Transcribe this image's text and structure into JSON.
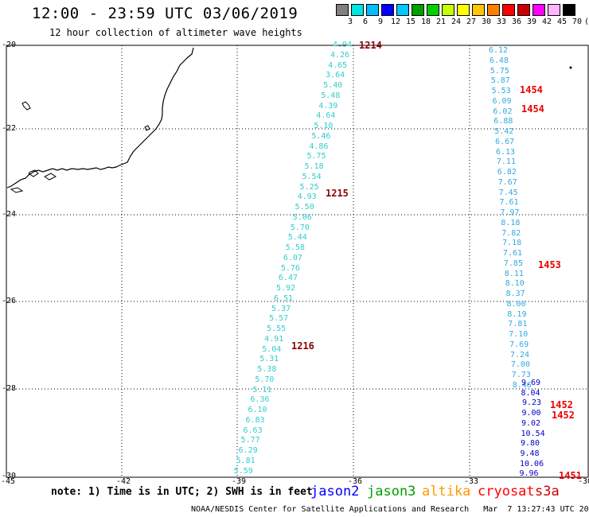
{
  "header": {
    "title": "12:00 - 23:59 UTC 03/06/2019",
    "subtitle": "12 hour collection of altimeter wave heights"
  },
  "color_scale": {
    "labels": [
      "3",
      "6",
      "9",
      "12",
      "15",
      "18",
      "21",
      "24",
      "27",
      "30",
      "33",
      "36",
      "39",
      "42",
      "45",
      "70"
    ],
    "unit": "(ft)",
    "colors": [
      "#808080",
      "#00e5e5",
      "#00bfff",
      "#0000ff",
      "#00c8ff",
      "#00a000",
      "#00d000",
      "#c8ff00",
      "#ffff00",
      "#ffc800",
      "#ff8000",
      "#ff0000",
      "#c80000",
      "#ff00ff",
      "#ffb4ff",
      "#000000"
    ]
  },
  "axes": {
    "lat_labels": [
      "-20",
      "-22",
      "-24",
      "-26",
      "-28",
      "-30"
    ],
    "lon_labels": [
      "-45",
      "-42",
      "-39",
      "-36",
      "-33",
      "-30"
    ]
  },
  "tracks": [
    {
      "color": "#33cccc",
      "values": [
        "4.94",
        "4.26",
        "4.65",
        "3.64",
        "5.40",
        "5.48",
        "4.39",
        "4.64",
        "5.10",
        "5.46",
        "4.86",
        "5.75",
        "5.18",
        "5.54",
        "5.25",
        "4.93",
        "5.50",
        "5.06",
        "5.70",
        "5.44",
        "5.58",
        "6.07",
        "5.76",
        "6.47",
        "5.92",
        "6.51",
        "5.37",
        "5.57",
        "5.55",
        "4.91",
        "5.04",
        "5.31",
        "5.38",
        "5.70",
        "5.11",
        "6.36",
        "6.10",
        "6.83",
        "6.63",
        "5.77",
        "6.29",
        "5.81",
        "5.59"
      ]
    },
    {
      "color": "#33aadd",
      "values": [
        "6.12",
        "6.48",
        "5.75",
        "5.87",
        "5.53",
        "6.09",
        "6.02",
        "6.88",
        "5.42",
        "6.67",
        "6.13",
        "7.11",
        "6.82",
        "7.67",
        "7.45",
        "7.61",
        "7.97",
        "8.18",
        "7.82",
        "7.18",
        "7.61",
        "7.85",
        "8.11",
        "8.10",
        "8.37",
        "8.00",
        "8.19",
        "7.81",
        "7.10",
        "7.69",
        "7.24",
        "7.00",
        "7.73",
        "8.46"
      ]
    },
    {
      "color": "#0000cc",
      "values": [
        "9.69",
        "8.04",
        "9.23",
        "9.00",
        "9.02",
        "10.54",
        "9.80",
        "9.48",
        "10.06",
        "9.96"
      ]
    }
  ],
  "time_labels": [
    {
      "text": "1214",
      "color": "#8b0000"
    },
    {
      "text": "1215",
      "color": "#8b0000"
    },
    {
      "text": "1216",
      "color": "#8b0000"
    },
    {
      "text": "1454",
      "color": "#ee0000"
    },
    {
      "text": "1454",
      "color": "#ee0000"
    },
    {
      "text": "1453",
      "color": "#ee0000"
    },
    {
      "text": "1452",
      "color": "#ee0000"
    },
    {
      "text": "1452",
      "color": "#ee0000"
    },
    {
      "text": "1451",
      "color": "#ee0000"
    }
  ],
  "legend": {
    "note": "note: 1) Time is in UTC; 2) SWH is in feet",
    "satellites": [
      {
        "name": "jason2",
        "color": "#0000ff"
      },
      {
        "name": "jason3",
        "color": "#00a000"
      },
      {
        "name": "altika",
        "color": "#ff9900"
      },
      {
        "name": "cryosat",
        "color": "#ff0000"
      },
      {
        "name": "s3a",
        "color": "#cc0000"
      }
    ]
  },
  "footer": "NOAA/NESDIS Center for Satellite Applications and Research   Mar  7 13:27:43 UTC 2019"
}
